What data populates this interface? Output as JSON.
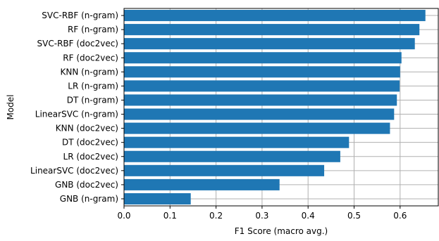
{
  "chart_data": {
    "type": "bar",
    "orientation": "horizontal",
    "categories": [
      "SVC-RBF (n-gram)",
      "RF (n-gram)",
      "SVC-RBF (doc2vec)",
      "RF (doc2vec)",
      "KNN (n-gram)",
      "LR (n-gram)",
      "DT (n-gram)",
      "LinearSVC (n-gram)",
      "KNN (doc2vec)",
      "DT (doc2vec)",
      "LR (doc2vec)",
      "LinearSVC (doc2vec)",
      "GNB (doc2vec)",
      "GNB (n-gram)"
    ],
    "values": [
      0.655,
      0.642,
      0.632,
      0.603,
      0.6,
      0.599,
      0.593,
      0.587,
      0.578,
      0.489,
      0.47,
      0.435,
      0.338,
      0.145
    ],
    "xlabel": "F1 Score (macro avg.)",
    "ylabel": "Model",
    "xlim": [
      0.0,
      0.683
    ],
    "xticks": [
      "0.0",
      "0.1",
      "0.2",
      "0.3",
      "0.4",
      "0.5",
      "0.6"
    ],
    "xtick_values": [
      0.0,
      0.1,
      0.2,
      0.3,
      0.4,
      0.5,
      0.6
    ],
    "grid": true,
    "bar_color": "#1f77b4",
    "grid_color": "#b0b0b0"
  }
}
